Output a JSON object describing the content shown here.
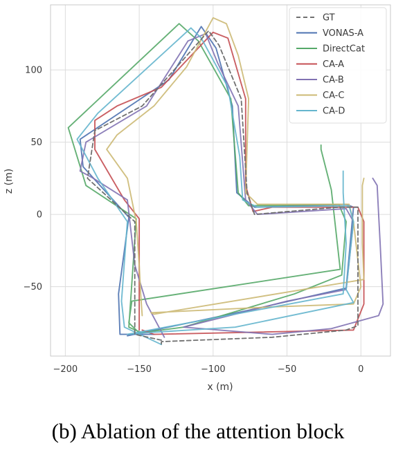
{
  "caption": "(b) Ablation of the attention block",
  "chart_data": {
    "type": "line",
    "xlabel": "x (m)",
    "ylabel": "z (m)",
    "xlim": [
      -210,
      20
    ],
    "ylim": [
      -98,
      145
    ],
    "xticks": [
      -200,
      -150,
      -100,
      -50,
      0
    ],
    "yticks": [
      -50,
      0,
      50,
      100
    ],
    "xtick_labels": [
      "−200",
      "−150",
      "−100",
      "−50",
      "0"
    ],
    "ytick_labels": [
      "−50",
      "0",
      "50",
      "100"
    ],
    "grid": true,
    "legend_position": "top-right",
    "series": [
      {
        "name": "GT",
        "color": "#707070",
        "dashed": true,
        "points": [
          [
            -135,
            -87
          ],
          [
            -153,
            -83
          ],
          [
            -153,
            -5
          ],
          [
            -185,
            25
          ],
          [
            -180,
            58
          ],
          [
            -148,
            75
          ],
          [
            -103,
            127
          ],
          [
            -96,
            117
          ],
          [
            -81,
            80
          ],
          [
            -77,
            15
          ],
          [
            -72,
            0
          ],
          [
            -15,
            5
          ],
          [
            -2,
            5
          ],
          [
            -2,
            -77
          ],
          [
            -10,
            -80
          ],
          [
            -60,
            -85
          ],
          [
            -135,
            -88
          ],
          [
            -135,
            -91
          ]
        ]
      },
      {
        "name": "VONAS-A",
        "color": "#4c72b0",
        "dashed": false,
        "points": [
          [
            -140,
            -83
          ],
          [
            -163,
            -83
          ],
          [
            -164,
            -55
          ],
          [
            -157,
            -2
          ],
          [
            -188,
            33
          ],
          [
            -190,
            52
          ],
          [
            -130,
            93
          ],
          [
            -108,
            130
          ],
          [
            -98,
            115
          ],
          [
            -87,
            75
          ],
          [
            -84,
            15
          ],
          [
            -72,
            5
          ],
          [
            -10,
            7
          ],
          [
            -5,
            5
          ],
          [
            -10,
            -51
          ],
          [
            -70,
            -65
          ],
          [
            -158,
            -84
          ]
        ]
      },
      {
        "name": "DirectCat",
        "color": "#55a868",
        "dashed": false,
        "points": [
          [
            -148,
            -82
          ],
          [
            -157,
            -78
          ],
          [
            -152,
            -3
          ],
          [
            -186,
            20
          ],
          [
            -198,
            60
          ],
          [
            -123,
            132
          ],
          [
            -110,
            120
          ],
          [
            -88,
            80
          ],
          [
            -83,
            15
          ],
          [
            -76,
            6
          ],
          [
            -15,
            7
          ],
          [
            -10,
            -5
          ],
          [
            -13,
            -42
          ],
          [
            -45,
            -55
          ],
          [
            -120,
            -78
          ],
          [
            -150,
            -82
          ],
          [
            -157,
            -75
          ],
          [
            -155,
            -60
          ],
          [
            -14,
            -38
          ],
          [
            -20,
            17
          ],
          [
            -27,
            45
          ],
          [
            -27,
            48
          ]
        ]
      },
      {
        "name": "CA-A",
        "color": "#c44e52",
        "dashed": false,
        "points": [
          [
            -148,
            -80
          ],
          [
            -140,
            -83
          ],
          [
            -5,
            -80
          ],
          [
            2,
            -62
          ],
          [
            2,
            -5
          ],
          [
            -2,
            5
          ],
          [
            -60,
            5
          ],
          [
            -73,
            2
          ],
          [
            -78,
            20
          ],
          [
            -78,
            80
          ],
          [
            -90,
            122
          ],
          [
            -100,
            126
          ],
          [
            -135,
            88
          ],
          [
            -165,
            75
          ],
          [
            -180,
            65
          ],
          [
            -180,
            45
          ],
          [
            -160,
            10
          ],
          [
            -150,
            -3
          ],
          [
            -150,
            -80
          ]
        ]
      },
      {
        "name": "CA-B",
        "color": "#8172b2",
        "dashed": false,
        "points": [
          [
            -133,
            -85
          ],
          [
            -145,
            -62
          ],
          [
            -153,
            -35
          ],
          [
            -158,
            10
          ],
          [
            -181,
            25
          ],
          [
            -190,
            30
          ],
          [
            -186,
            50
          ],
          [
            -145,
            75
          ],
          [
            -117,
            120
          ],
          [
            -105,
            125
          ],
          [
            -97,
            105
          ],
          [
            -83,
            75
          ],
          [
            -78,
            10
          ],
          [
            -70,
            0
          ],
          [
            -10,
            4
          ],
          [
            -5,
            -5
          ],
          [
            -10,
            -52
          ],
          [
            -50,
            -60
          ],
          [
            -120,
            -78
          ],
          [
            -60,
            -83
          ],
          [
            -20,
            -79
          ],
          [
            12,
            -70
          ],
          [
            15,
            -62
          ],
          [
            13,
            -20
          ],
          [
            12,
            0
          ],
          [
            11,
            20
          ],
          [
            8,
            25
          ]
        ]
      },
      {
        "name": "CA-C",
        "color": "#ccb974",
        "dashed": false,
        "points": [
          [
            -148,
            -70
          ],
          [
            -149,
            -55
          ],
          [
            -150,
            -35
          ],
          [
            -152,
            -5
          ],
          [
            -158,
            25
          ],
          [
            -172,
            45
          ],
          [
            -165,
            55
          ],
          [
            -140,
            75
          ],
          [
            -118,
            102
          ],
          [
            -100,
            136
          ],
          [
            -91,
            132
          ],
          [
            -83,
            110
          ],
          [
            -76,
            80
          ],
          [
            -78,
            15
          ],
          [
            -70,
            7
          ],
          [
            -8,
            7
          ],
          [
            -5,
            -5
          ],
          [
            0,
            -50
          ],
          [
            -5,
            -62
          ],
          [
            -60,
            -64
          ],
          [
            -142,
            -68
          ],
          [
            -140,
            -69
          ],
          [
            2,
            -45
          ],
          [
            1,
            -20
          ],
          [
            1,
            0
          ],
          [
            1,
            20
          ],
          [
            2,
            25
          ]
        ]
      },
      {
        "name": "CA-D",
        "color": "#64b5cd",
        "dashed": false,
        "points": [
          [
            -135,
            -90
          ],
          [
            -160,
            -78
          ],
          [
            -162,
            -60
          ],
          [
            -158,
            -5
          ],
          [
            -178,
            25
          ],
          [
            -192,
            52
          ],
          [
            -178,
            70
          ],
          [
            -115,
            129
          ],
          [
            -108,
            122
          ],
          [
            -90,
            88
          ],
          [
            -82,
            40
          ],
          [
            -80,
            10
          ],
          [
            -70,
            5
          ],
          [
            -8,
            6
          ],
          [
            -5,
            -5
          ],
          [
            -10,
            -52
          ],
          [
            -5,
            -61
          ],
          [
            -85,
            -78
          ],
          [
            -148,
            -82
          ],
          [
            -158,
            -83
          ],
          [
            -12,
            -55
          ],
          [
            -10,
            -20
          ],
          [
            -12,
            15
          ],
          [
            -12,
            30
          ]
        ]
      }
    ]
  }
}
